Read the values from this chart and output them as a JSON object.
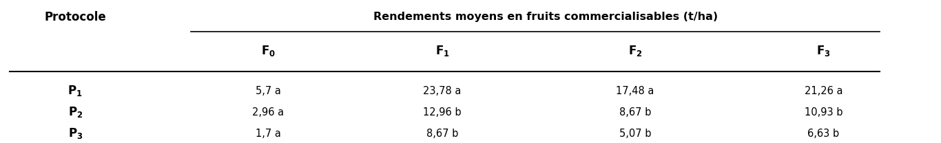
{
  "col_header_main": "Rendements moyens en fruits commercialisables (t/ha)",
  "row_header_label": "Protocole",
  "sub_headers": [
    [
      "F",
      "0"
    ],
    [
      "F",
      "1"
    ],
    [
      "F",
      "2"
    ],
    [
      "F",
      "3"
    ]
  ],
  "row_headers": [
    [
      "P",
      "1"
    ],
    [
      "P",
      "2"
    ],
    [
      "P",
      "3"
    ]
  ],
  "data": [
    [
      "5,7 a",
      "23,78 a",
      "17,48 a",
      "21,26 a"
    ],
    [
      "2,96 a",
      "12,96 b",
      "8,67 b",
      "10,93 b"
    ],
    [
      "1,7 a",
      "8,67 b",
      "5,07 b",
      "6,63 b"
    ]
  ],
  "bg_color": "#ffffff",
  "text_color": "#000000",
  "fig_width": 13.66,
  "fig_height": 2.08,
  "dpi": 100
}
